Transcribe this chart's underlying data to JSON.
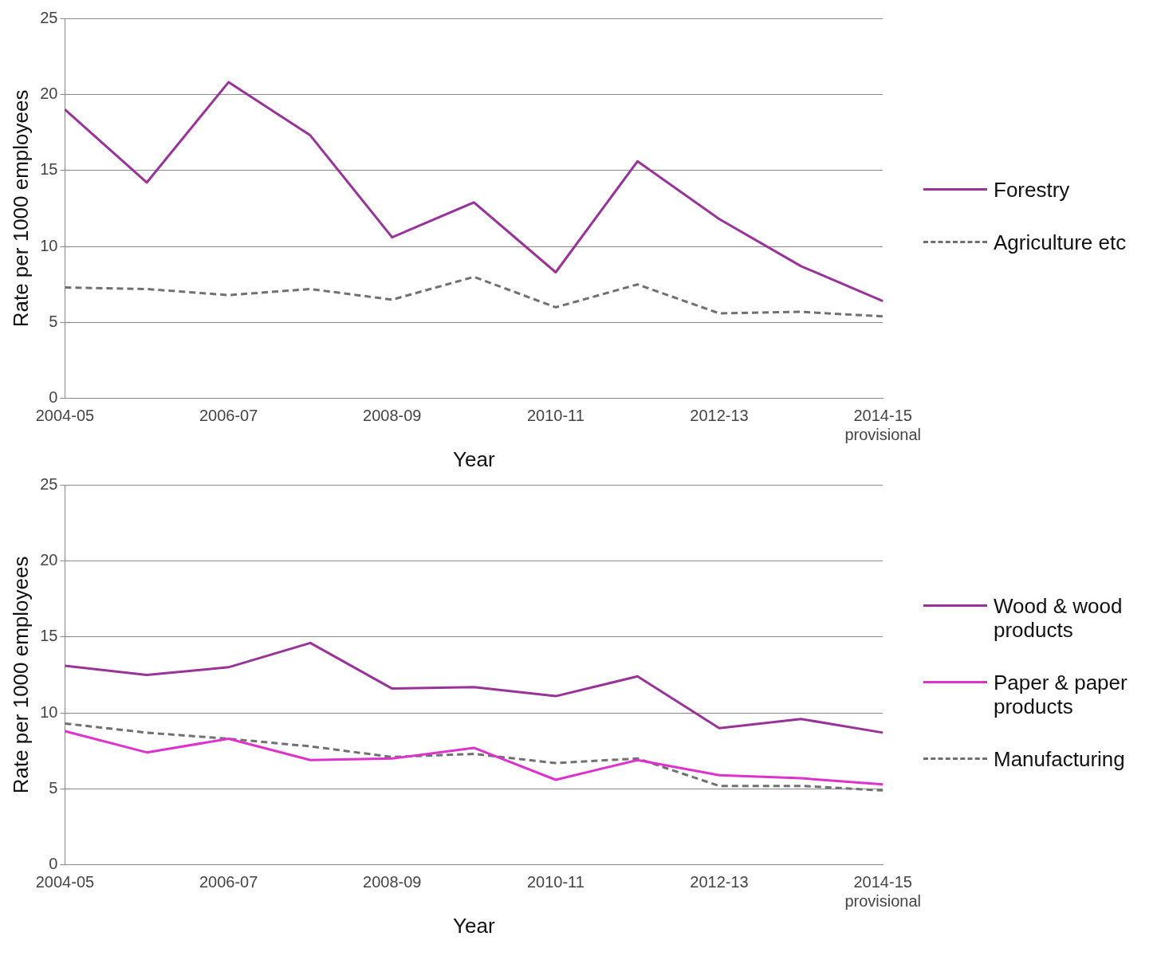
{
  "chart_data": [
    {
      "type": "line",
      "xlabel": "Year",
      "ylabel": "Rate per 1000 employees",
      "categories": [
        "2004-05",
        null,
        "2006-07",
        null,
        "2008-09",
        null,
        "2010-11",
        null,
        "2012-13",
        null,
        "2014-15\nprovisional"
      ],
      "series": [
        {
          "name": "Forestry",
          "color": "#993399",
          "line_style": "solid",
          "values": [
            19.0,
            14.2,
            20.8,
            17.3,
            10.6,
            12.9,
            8.3,
            15.6,
            11.8,
            8.7,
            6.4
          ]
        },
        {
          "name": "Agriculture etc",
          "color": "#707070",
          "line_style": "dashed",
          "values": [
            7.3,
            7.2,
            6.8,
            7.2,
            6.5,
            8.0,
            6.0,
            7.5,
            5.6,
            5.7,
            5.4
          ]
        }
      ],
      "ylim": [
        0,
        25
      ],
      "yticks": [
        0,
        5,
        10,
        15,
        20,
        25
      ],
      "grid": "y",
      "legend": "right",
      "marker": "none"
    },
    {
      "type": "line",
      "xlabel": "Year",
      "ylabel": "Rate per 1000 employees",
      "categories": [
        "2004-05",
        null,
        "2006-07",
        null,
        "2008-09",
        null,
        "2010-11",
        null,
        "2012-13",
        null,
        "2014-15\nprovisional"
      ],
      "series": [
        {
          "name": "Wood & wood products",
          "color": "#993399",
          "line_style": "solid",
          "values": [
            13.1,
            12.5,
            13.0,
            14.6,
            11.6,
            11.7,
            11.1,
            12.4,
            9.0,
            9.6,
            8.7
          ]
        },
        {
          "name": "Paper & paper products",
          "color": "#dd33cc",
          "line_style": "solid",
          "values": [
            8.8,
            7.4,
            8.3,
            6.9,
            7.0,
            7.7,
            5.6,
            6.9,
            5.9,
            5.7,
            5.3
          ]
        },
        {
          "name": "Manufacturing",
          "color": "#707070",
          "line_style": "dashed",
          "values": [
            9.3,
            8.7,
            8.3,
            7.8,
            7.1,
            7.3,
            6.7,
            7.0,
            5.2,
            5.2,
            4.9
          ]
        }
      ],
      "ylim": [
        0,
        25
      ],
      "yticks": [
        0,
        5,
        10,
        15,
        20,
        25
      ],
      "grid": "y",
      "legend": "right",
      "marker": "none"
    }
  ]
}
